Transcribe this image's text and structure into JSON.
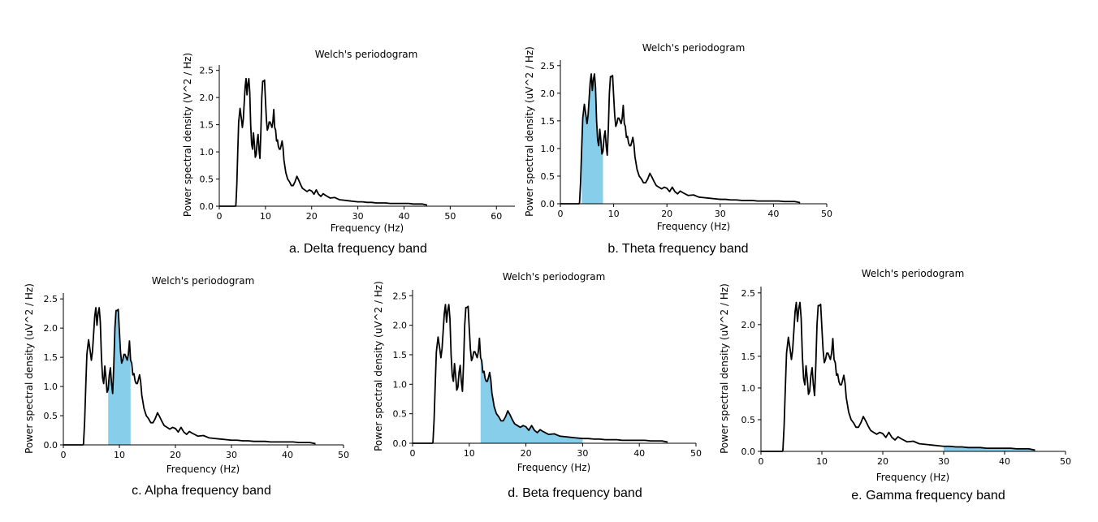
{
  "colors": {
    "line": "#000000",
    "fill": "#87ceeb",
    "axis": "#000000"
  },
  "psd_shape": {
    "x": [
      0,
      3.5,
      3.6,
      3.8,
      4.0,
      4.2,
      4.5,
      4.8,
      5.0,
      5.2,
      5.4,
      5.6,
      5.8,
      6.0,
      6.2,
      6.4,
      6.6,
      6.8,
      7.0,
      7.2,
      7.4,
      7.6,
      7.8,
      8.0,
      8.2,
      8.4,
      8.6,
      8.8,
      9.0,
      9.2,
      9.4,
      9.6,
      9.8,
      10.0,
      10.2,
      10.4,
      10.6,
      10.8,
      11.0,
      11.2,
      11.4,
      11.6,
      11.8,
      12.0,
      12.2,
      12.4,
      12.6,
      12.8,
      13.0,
      13.2,
      13.4,
      13.6,
      13.8,
      14.0,
      14.4,
      14.8,
      15.2,
      15.6,
      16.0,
      16.4,
      16.8,
      17.2,
      17.6,
      18.0,
      18.5,
      19.0,
      19.5,
      20.0,
      20.5,
      21.0,
      21.5,
      22.0,
      22.5,
      23.0,
      24.0,
      25.0,
      26.0,
      27.0,
      28.0,
      29.0,
      30.0,
      31.0,
      32.0,
      33.0,
      34.0,
      35.0,
      36.0,
      37.0,
      38.0,
      39.0,
      40.0,
      41.0,
      42.0,
      43.0,
      44.0,
      45.0
    ],
    "y": [
      0,
      0,
      0.02,
      0.4,
      1.0,
      1.55,
      1.8,
      1.6,
      1.45,
      1.6,
      1.9,
      2.2,
      2.35,
      2.05,
      2.25,
      2.35,
      2.1,
      1.5,
      1.15,
      1.05,
      1.35,
      1.15,
      0.9,
      0.95,
      1.2,
      1.32,
      1.05,
      0.88,
      1.35,
      2.0,
      2.3,
      2.3,
      2.32,
      1.95,
      1.6,
      1.4,
      1.45,
      1.55,
      1.55,
      1.5,
      1.45,
      1.55,
      1.78,
      1.45,
      1.4,
      1.2,
      1.22,
      1.1,
      1.05,
      1.05,
      1.12,
      1.2,
      1.08,
      0.85,
      0.62,
      0.5,
      0.45,
      0.38,
      0.38,
      0.45,
      0.55,
      0.48,
      0.4,
      0.33,
      0.3,
      0.27,
      0.3,
      0.28,
      0.22,
      0.3,
      0.22,
      0.18,
      0.23,
      0.2,
      0.15,
      0.16,
      0.12,
      0.11,
      0.1,
      0.09,
      0.08,
      0.08,
      0.07,
      0.07,
      0.06,
      0.06,
      0.06,
      0.05,
      0.05,
      0.05,
      0.05,
      0.05,
      0.04,
      0.04,
      0.04,
      0.02
    ]
  },
  "chart_data": [
    {
      "type": "area",
      "title": "Welch's periodogram",
      "xlabel": "Frequency (Hz)",
      "ylabel": "Power spectral density (V^2 / Hz)",
      "xlim": [
        0,
        64
      ],
      "ylim": [
        0,
        2.6
      ],
      "xticks": [
        0,
        10,
        20,
        30,
        40,
        50,
        60
      ],
      "yticks": [
        0.0,
        0.5,
        1.0,
        1.5,
        2.0,
        2.5
      ],
      "highlight_band": null,
      "caption": "a. Delta frequency band"
    },
    {
      "type": "area",
      "title": "Welch's periodogram",
      "xlabel": "Frequency (Hz)",
      "ylabel": "Power spectral density (uV^2 / Hz)",
      "xlim": [
        0,
        50
      ],
      "ylim": [
        0,
        2.6
      ],
      "xticks": [
        0,
        10,
        20,
        30,
        40,
        50
      ],
      "yticks": [
        0.0,
        0.5,
        1.0,
        1.5,
        2.0,
        2.5
      ],
      "highlight_band": [
        4,
        8
      ],
      "caption": "b. Theta frequency band"
    },
    {
      "type": "area",
      "title": "Welch's periodogram",
      "xlabel": "Frequency (Hz)",
      "ylabel": "Power spectral density (uV^2 / Hz)",
      "xlim": [
        0,
        50
      ],
      "ylim": [
        0,
        2.6
      ],
      "xticks": [
        0,
        10,
        20,
        30,
        40,
        50
      ],
      "yticks": [
        0.0,
        0.5,
        1.0,
        1.5,
        2.0,
        2.5
      ],
      "highlight_band": [
        8,
        12
      ],
      "caption": "c. Alpha frequency band"
    },
    {
      "type": "area",
      "title": "Welch's periodogram",
      "xlabel": "Frequency (Hz)",
      "ylabel": "Power spectral density (uV^2 / Hz)",
      "xlim": [
        0,
        50
      ],
      "ylim": [
        0,
        2.6
      ],
      "xticks": [
        0,
        10,
        20,
        30,
        40,
        50
      ],
      "yticks": [
        0.0,
        0.5,
        1.0,
        1.5,
        2.0,
        2.5
      ],
      "highlight_band": [
        12,
        30
      ],
      "caption": "d. Beta frequency band"
    },
    {
      "type": "area",
      "title": "Welch's periodogram",
      "xlabel": "Frequency (Hz)",
      "ylabel": "Power spectral density (uV^2 / Hz)",
      "xlim": [
        0,
        50
      ],
      "ylim": [
        0,
        2.6
      ],
      "xticks": [
        0,
        10,
        20,
        30,
        40,
        50
      ],
      "yticks": [
        0.0,
        0.5,
        1.0,
        1.5,
        2.0,
        2.5
      ],
      "highlight_band": [
        30,
        45
      ],
      "caption": "e. Gamma frequency band"
    }
  ]
}
